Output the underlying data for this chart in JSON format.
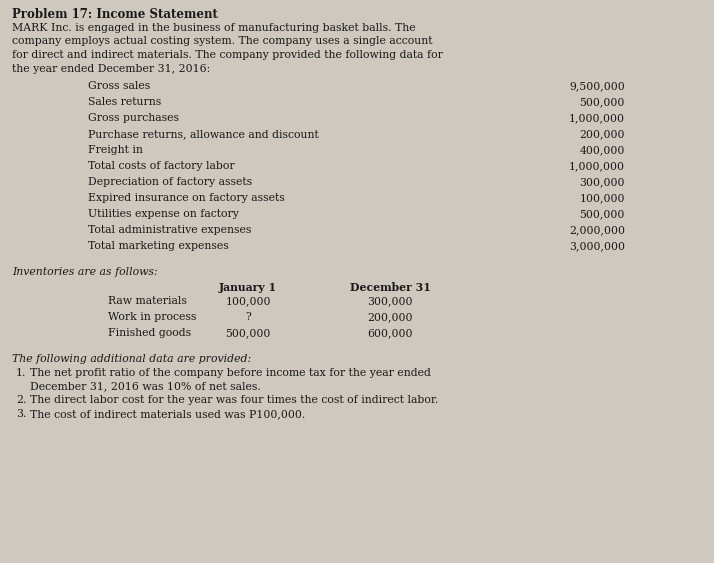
{
  "title": "Problem 17: Income Statement",
  "intro_line1": "MARK Inc. is engaged in the business of manufacturing basket balls. The",
  "intro_line2": "company employs actual costing system. The company uses a single account",
  "intro_line3": "for direct and indirect materials. The company provided the following data for",
  "intro_line4": "the year ended December 31, 2016:",
  "items": [
    "Gross sales",
    "Sales returns",
    "Gross purchases",
    "Purchase returns, allowance and discount",
    "Freight in",
    "Total costs of factory labor",
    "Depreciation of factory assets",
    "Expired insurance on factory assets",
    "Utilities expense on factory",
    "Total administrative expenses",
    "Total marketing expenses"
  ],
  "values": [
    "9,500,000",
    "500,000",
    "1,000,000",
    "200,000",
    "400,000",
    "1,000,000",
    "300,000",
    "100,000",
    "500,000",
    "2,000,000",
    "3,000,000"
  ],
  "inventory_header": "Inventories are as follows:",
  "inventory_col1": "January 1",
  "inventory_col2": "December 31",
  "inventory_items": [
    "Raw materials",
    "Work in process",
    "Finished goods"
  ],
  "inventory_jan": [
    "100,000",
    "?",
    "500,000"
  ],
  "inventory_dec": [
    "300,000",
    "200,000",
    "600,000"
  ],
  "additional_header": "The following additional data are provided:",
  "additional_items": [
    [
      "1.",
      "The net profit ratio of the company before income tax for the year ended",
      "December 31, 2016 was 10% of net sales."
    ],
    [
      "2.",
      "The direct labor cost for the year was four times the cost of indirect labor.",
      ""
    ],
    [
      "3.",
      "The cost of indirect materials used was P100,000.",
      ""
    ]
  ],
  "bg_color": "#cec8be",
  "text_color": "#1a1a1a",
  "fs_title": 8.5,
  "fs_body": 7.8
}
